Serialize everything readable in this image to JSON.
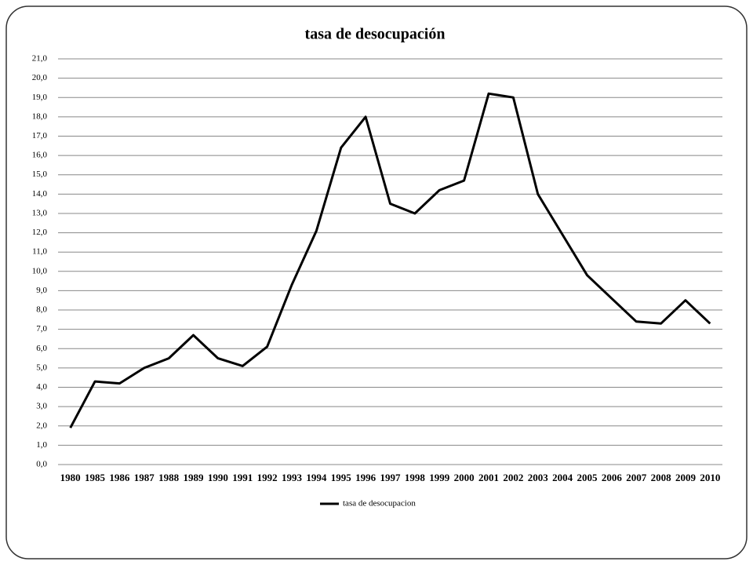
{
  "chart_data": {
    "type": "line",
    "title": "tasa de desocupación",
    "categories": [
      "1980",
      "1985",
      "1986",
      "1987",
      "1988",
      "1989",
      "1990",
      "1991",
      "1992",
      "1993",
      "1994",
      "1995",
      "1996",
      "1997",
      "1998",
      "1999",
      "2000",
      "2001",
      "2002",
      "2003",
      "2004",
      "2005",
      "2006",
      "2007",
      "2008",
      "2009",
      "2010"
    ],
    "series": [
      {
        "name": "tasa de desocupacion",
        "color": "#000000",
        "values": [
          1.9,
          4.3,
          4.2,
          5.0,
          5.5,
          6.7,
          5.5,
          5.1,
          6.1,
          9.3,
          12.1,
          16.4,
          18.0,
          13.5,
          13.0,
          14.2,
          14.7,
          19.2,
          19.0,
          14.0,
          11.9,
          9.8,
          8.6,
          7.4,
          7.3,
          8.5,
          7.3
        ]
      }
    ],
    "ylim": [
      0,
      21
    ],
    "yticks": [
      {
        "value": 0,
        "label": "0,0"
      },
      {
        "value": 1,
        "label": "1,0"
      },
      {
        "value": 2,
        "label": "2,0"
      },
      {
        "value": 3,
        "label": "3,0"
      },
      {
        "value": 4,
        "label": "4,0"
      },
      {
        "value": 5,
        "label": "5,0"
      },
      {
        "value": 6,
        "label": "6,0"
      },
      {
        "value": 7,
        "label": "7,0"
      },
      {
        "value": 8,
        "label": "8,0"
      },
      {
        "value": 9,
        "label": "9,0"
      },
      {
        "value": 10,
        "label": "10,0"
      },
      {
        "value": 11,
        "label": "11,0"
      },
      {
        "value": 12,
        "label": "12,0"
      },
      {
        "value": 13,
        "label": "13,0"
      },
      {
        "value": 14,
        "label": "14,0"
      },
      {
        "value": 15,
        "label": "15,0"
      },
      {
        "value": 16,
        "label": "16,0"
      },
      {
        "value": 17,
        "label": "17,0"
      },
      {
        "value": 18,
        "label": "18,0"
      },
      {
        "value": 19,
        "label": "19,0"
      },
      {
        "value": 20,
        "label": "20,0"
      },
      {
        "value": 21,
        "label": "21,0"
      }
    ],
    "grid": true,
    "legend": "bottom"
  }
}
